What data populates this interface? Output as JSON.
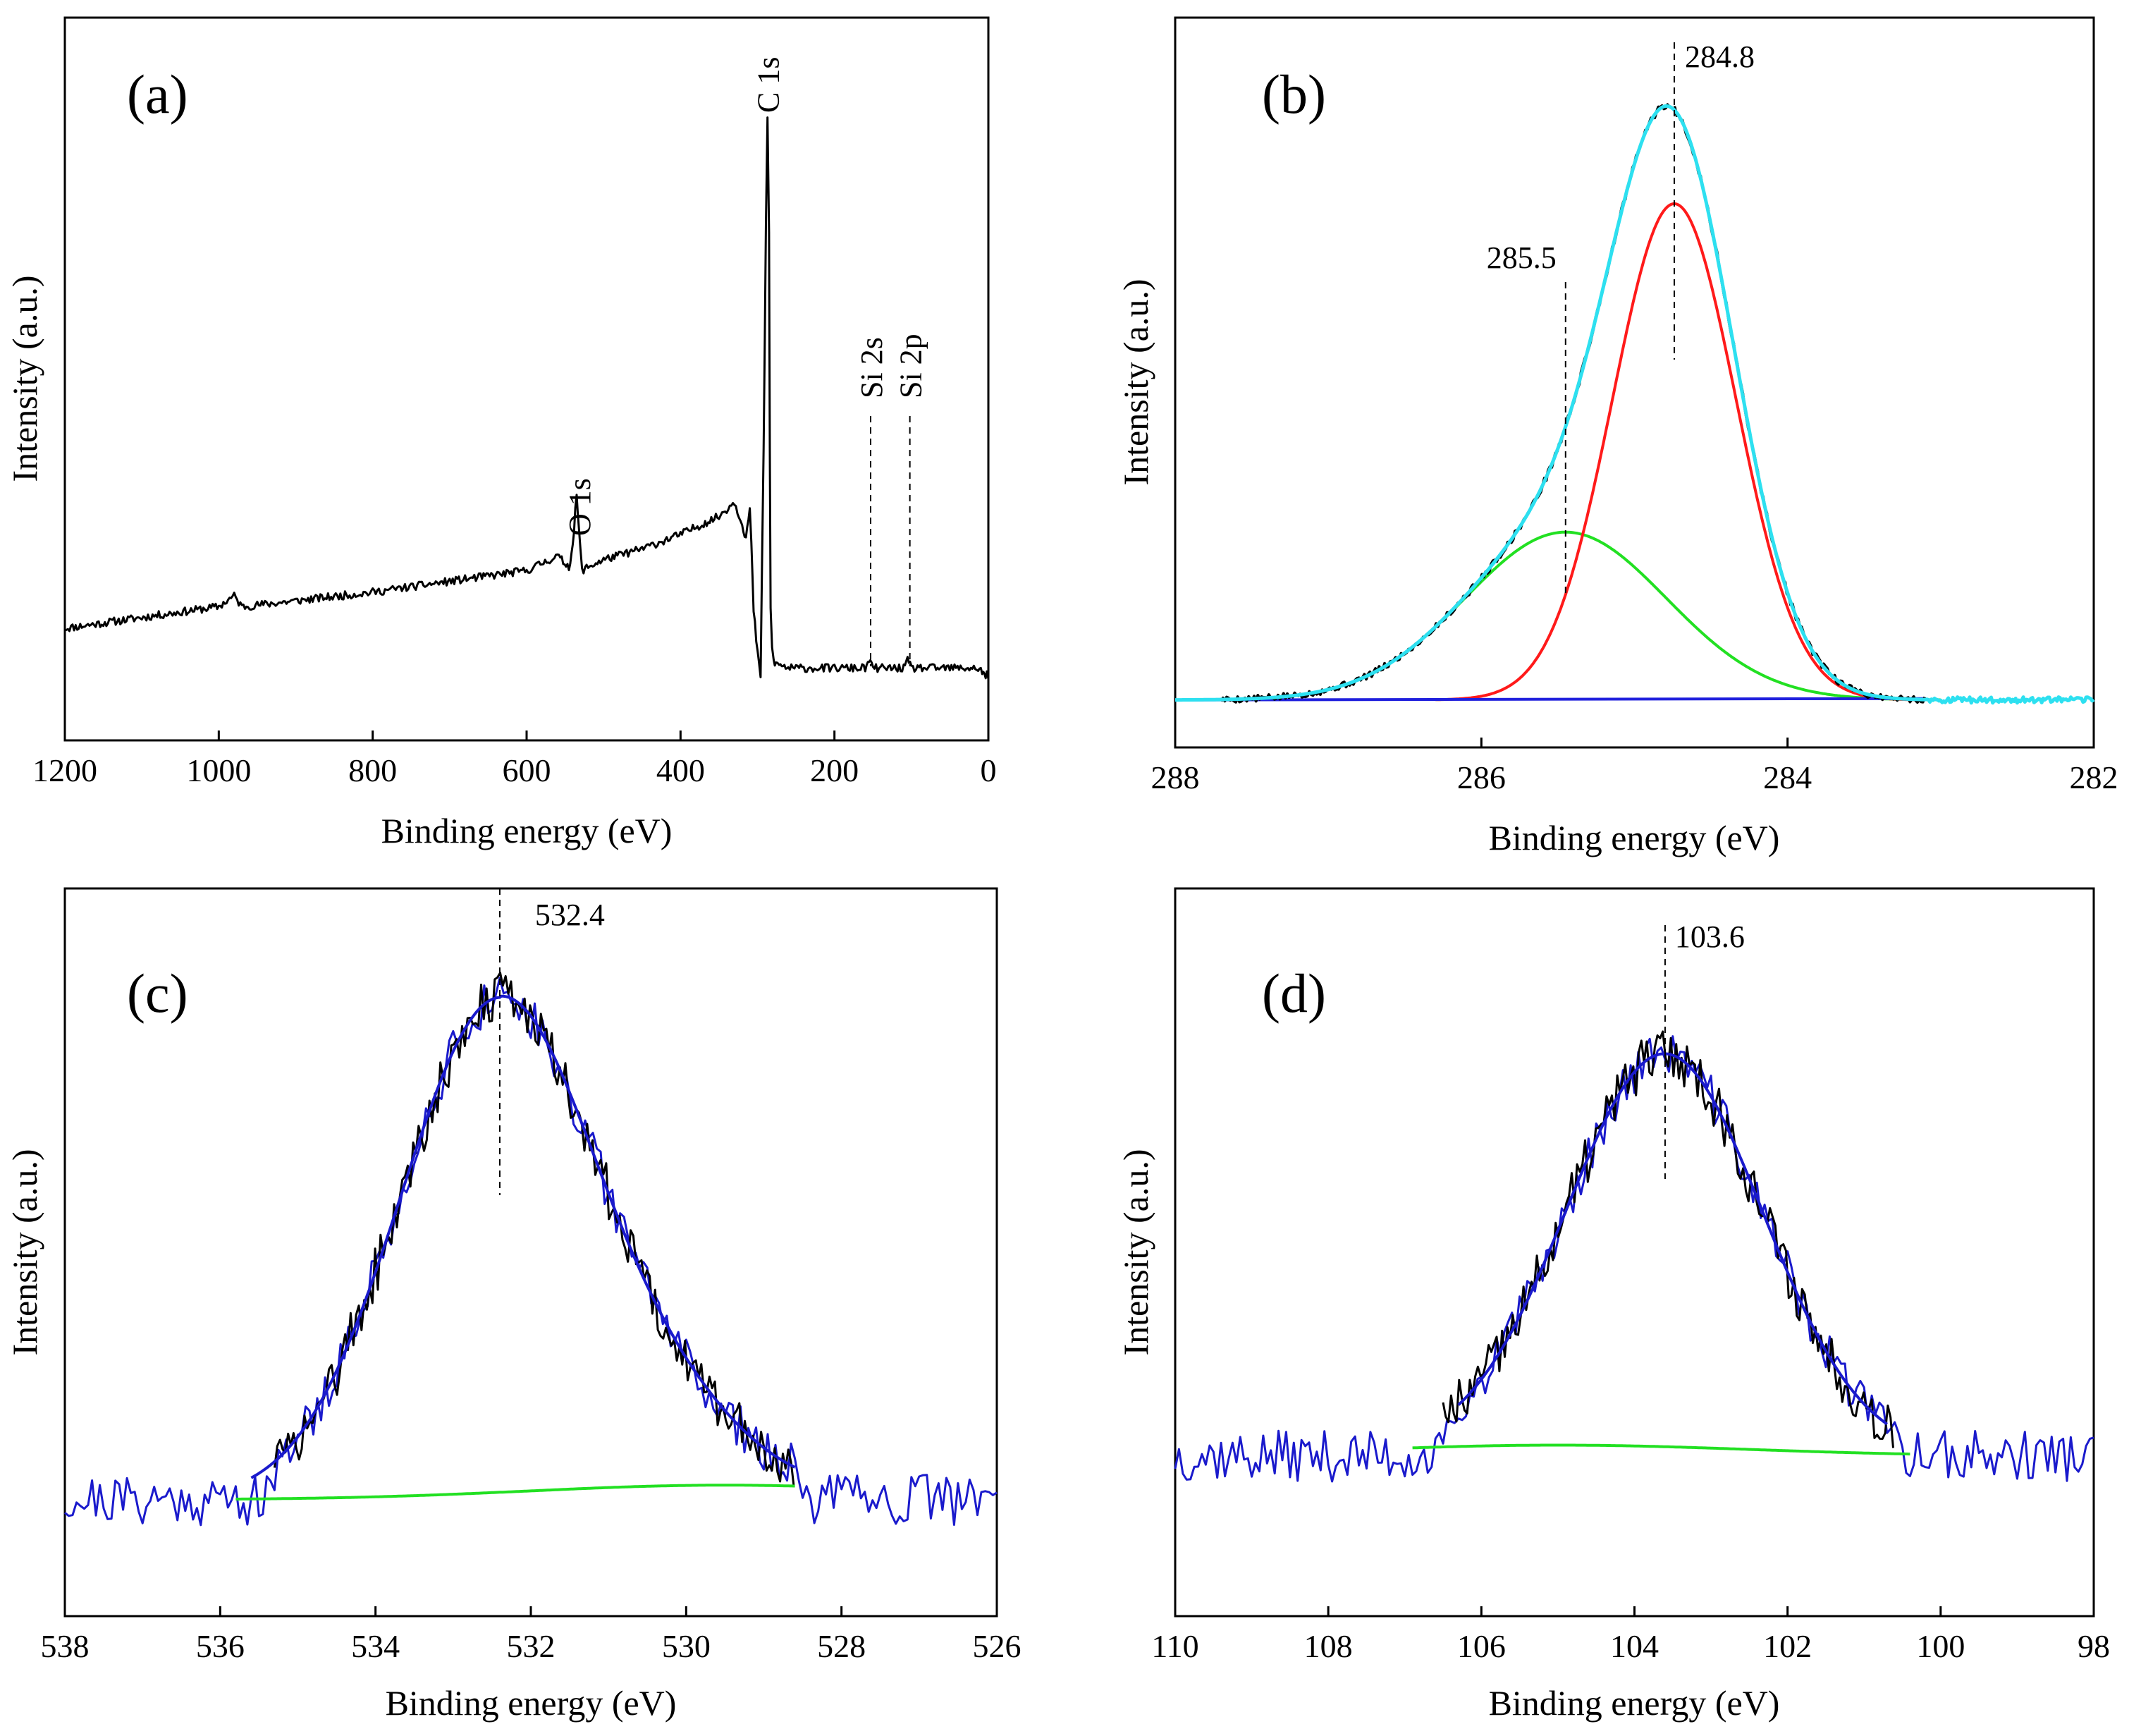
{
  "chart_data": [
    {
      "id": "a",
      "type": "line",
      "panel_label": "(a)",
      "xlabel": "Binding energy (eV)",
      "ylabel": "Intensity (a.u.)",
      "xlim": [
        1200,
        0
      ],
      "ylim": [
        0,
        100
      ],
      "xticks": [
        1200,
        1000,
        800,
        600,
        400,
        200,
        0
      ],
      "series": [
        {
          "name": "survey",
          "color": "#000000",
          "x": [
            1200,
            1100,
            1000,
            980,
            970,
            900,
            800,
            700,
            600,
            560,
            545,
            540,
            535,
            532,
            528,
            520,
            500,
            450,
            400,
            350,
            330,
            320,
            315,
            310,
            308,
            305,
            300,
            296,
            292,
            289,
            287,
            285,
            284,
            283,
            281,
            279,
            276,
            272,
            265,
            260,
            220,
            160,
            155,
            150,
            140,
            110,
            105,
            100,
            90,
            40,
            15,
            8,
            5,
            2,
            0
          ],
          "y": [
            15.5,
            17,
            18.5,
            20,
            18.5,
            19.3,
            20.5,
            22,
            23.5,
            25.5,
            24,
            27,
            34,
            29,
            23.5,
            24,
            25,
            26.5,
            28.5,
            31,
            33,
            30,
            28,
            32,
            27,
            18,
            12,
            9,
            40,
            72,
            86,
            70,
            40,
            18,
            13,
            11,
            10.5,
            10.5,
            10.2,
            10,
            10,
            10,
            11,
            10,
            10,
            10,
            11,
            10,
            10,
            10,
            10,
            9.5,
            9,
            9,
            8.5
          ]
        }
      ],
      "annotations": [
        {
          "text": "C 1s",
          "x": 287
        },
        {
          "text": "O 1s",
          "x": 532
        },
        {
          "text": "Si 2s",
          "x": 153
        },
        {
          "text": "Si 2p",
          "x": 102
        }
      ]
    },
    {
      "id": "b",
      "type": "line",
      "panel_label": "(b)",
      "xlabel": "Binding energy (eV)",
      "ylabel": "Intensity (a.u.)",
      "xlim": [
        288,
        282
      ],
      "ylim": [
        0,
        100
      ],
      "xticks": [
        288,
        286,
        284,
        282
      ],
      "components": [
        {
          "name": "fit",
          "color": "#2de0f0",
          "center": 284.8,
          "height": 79,
          "fwhm": 1.3
        },
        {
          "name": "peak-284.8",
          "color": "#ff1a1a",
          "center": 284.74,
          "height": 68,
          "fwhm": 0.95
        },
        {
          "name": "peak-285.5",
          "color": "#22e022",
          "center": 285.45,
          "height": 23,
          "fwhm": 1.55
        },
        {
          "name": "baseline",
          "color": "#2020dd"
        },
        {
          "name": "raw",
          "color": "#000000"
        }
      ],
      "baseline": 6.5,
      "annotations": [
        {
          "text": "284.8",
          "x": 284.74
        },
        {
          "text": "285.5",
          "x": 285.45
        }
      ]
    },
    {
      "id": "c",
      "type": "line",
      "panel_label": "(c)",
      "xlabel": "Binding energy (eV)",
      "ylabel": "Intensity (a.u.)",
      "xlim": [
        538,
        526
      ],
      "ylim": [
        0,
        100
      ],
      "xticks": [
        538,
        536,
        534,
        532,
        530,
        528,
        526
      ],
      "components": [
        {
          "name": "fit",
          "color": "#1a1acc",
          "center": 532.4,
          "height": 68,
          "fwhm": 3.0,
          "tail_width": 3.2
        },
        {
          "name": "background",
          "color": "#22e022"
        },
        {
          "name": "raw",
          "color": "#000000"
        },
        {
          "name": "noise",
          "color": "#1a1acc"
        }
      ],
      "baseline": 16,
      "annotations": [
        {
          "text": "532.4",
          "x": 532.4
        }
      ]
    },
    {
      "id": "d",
      "type": "line",
      "panel_label": "(d)",
      "xlabel": "Binding energy (eV)",
      "ylabel": "Intensity (a.u.)",
      "xlim": [
        110,
        98
      ],
      "ylim": [
        0,
        100
      ],
      "xticks": [
        110,
        108,
        106,
        104,
        102,
        100,
        98
      ],
      "components": [
        {
          "name": "fit",
          "color": "#1a1acc",
          "center": 103.6,
          "height": 54,
          "fwhm": 3.0
        },
        {
          "name": "background",
          "color": "#22e022"
        },
        {
          "name": "raw",
          "color": "#000000"
        },
        {
          "name": "noise",
          "color": "#1a1acc"
        }
      ],
      "baseline": 22,
      "annotations": [
        {
          "text": "103.6",
          "x": 103.6
        }
      ]
    }
  ]
}
